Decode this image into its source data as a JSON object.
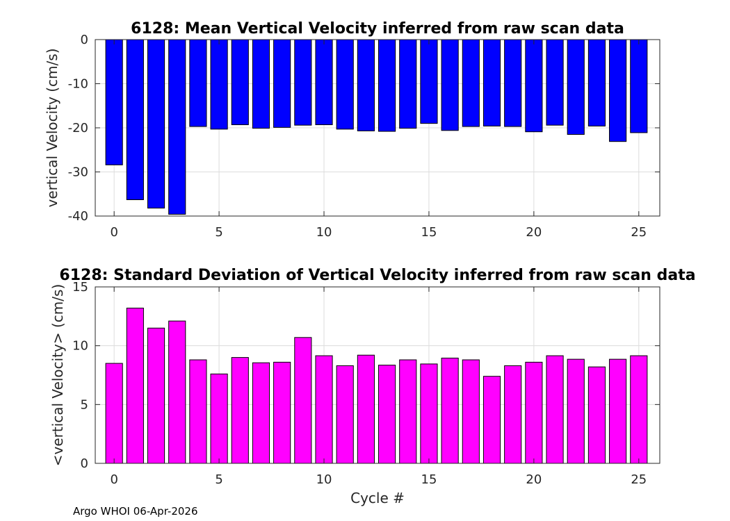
{
  "footer_text": "Argo WHOI 06-Apr-2026",
  "chart_data": [
    {
      "type": "bar",
      "title": "6128: Mean Vertical Velocity inferred from raw scan data",
      "xlabel": "",
      "ylabel": "vertical Velocity (cm/s)",
      "color": "#0000ff",
      "x": [
        0,
        1,
        2,
        3,
        4,
        5,
        6,
        7,
        8,
        9,
        10,
        11,
        12,
        13,
        14,
        15,
        16,
        17,
        18,
        19,
        20,
        21,
        22,
        23,
        24,
        25
      ],
      "values": [
        -28.4,
        -36.3,
        -38.2,
        -39.6,
        -19.7,
        -20.3,
        -19.3,
        -20.1,
        -19.9,
        -19.4,
        -19.3,
        -20.3,
        -20.7,
        -20.8,
        -20.1,
        -19.0,
        -20.6,
        -19.7,
        -19.6,
        -19.7,
        -20.9,
        -19.4,
        -21.5,
        -19.6,
        -23.1,
        -21.1
      ],
      "xlim": [
        -0.9,
        26
      ],
      "ylim": [
        -40,
        0
      ],
      "xticks": [
        0,
        5,
        10,
        15,
        20,
        25
      ],
      "yticks": [
        -40,
        -30,
        -20,
        -10,
        0
      ],
      "grid": true
    },
    {
      "type": "bar",
      "title": "6128: Standard Deviation of Vertical Velocity inferred from raw scan data",
      "xlabel": "Cycle #",
      "ylabel": "<vertical Velocity> (cm/s)",
      "color": "#ff00ff",
      "x": [
        0,
        1,
        2,
        3,
        4,
        5,
        6,
        7,
        8,
        9,
        10,
        11,
        12,
        13,
        14,
        15,
        16,
        17,
        18,
        19,
        20,
        21,
        22,
        23,
        24,
        25
      ],
      "values": [
        8.5,
        13.2,
        11.5,
        12.1,
        8.8,
        7.6,
        9.0,
        8.55,
        8.6,
        10.7,
        9.15,
        8.3,
        9.2,
        8.35,
        8.8,
        8.45,
        8.95,
        8.8,
        7.4,
        8.3,
        8.6,
        9.15,
        8.85,
        8.2,
        8.85,
        9.15
      ],
      "xlim": [
        -0.9,
        26
      ],
      "ylim": [
        0,
        15
      ],
      "xticks": [
        0,
        5,
        10,
        15,
        20,
        25
      ],
      "yticks": [
        0,
        5,
        10,
        15
      ],
      "grid": true
    }
  ]
}
